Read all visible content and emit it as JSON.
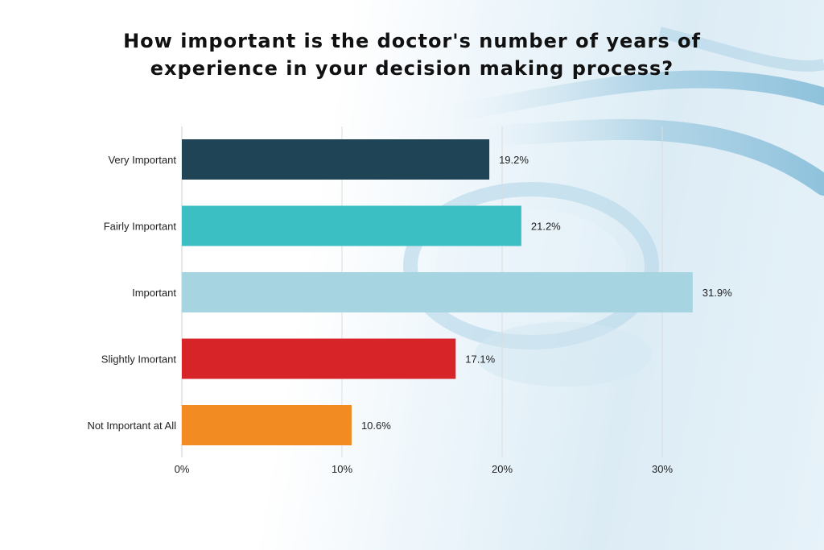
{
  "chart_data": {
    "type": "bar",
    "orientation": "horizontal",
    "title": "How important is the doctor's number of years of\nexperience in your decision making process?",
    "xlabel": "",
    "ylabel": "",
    "categories": [
      "Very Important",
      "Fairly Important",
      "Important",
      "Slightly Imortant",
      "Not Important at All"
    ],
    "values": [
      19.2,
      21.2,
      31.9,
      17.1,
      10.6
    ],
    "value_labels": [
      "19.2%",
      "21.2%",
      "31.9%",
      "17.1%",
      "10.6%"
    ],
    "colors": [
      "#1f4455",
      "#3bbfc3",
      "#a6d4e1",
      "#d62428",
      "#f28c22"
    ],
    "xlim": [
      0,
      33
    ],
    "xticks": [
      0,
      10,
      20,
      30
    ],
    "xtick_labels": [
      "0%",
      "10%",
      "20%",
      "30%"
    ],
    "grid": "vertical",
    "legend": "none"
  }
}
